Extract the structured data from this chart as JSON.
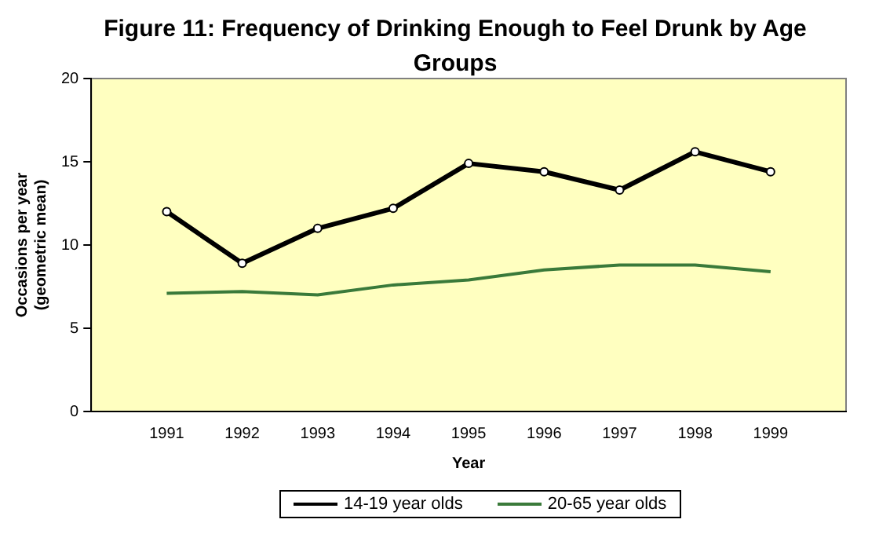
{
  "chart_data": {
    "type": "line",
    "title": "Figure 11: Frequency of Drinking Enough to Feel Drunk by Age Groups",
    "xlabel": "Year",
    "ylabel": "Occasions per year (geometric mean)",
    "categories": [
      null,
      "1991",
      "1992",
      "1993",
      "1994",
      "1995",
      "1996",
      "1997",
      "1998",
      "1999",
      null
    ],
    "series": [
      {
        "name": "14-19 year olds",
        "color": "#000000",
        "marker": "circle",
        "values": [
          null,
          12.0,
          8.9,
          11.0,
          12.2,
          14.9,
          14.4,
          13.3,
          15.6,
          14.4,
          null
        ]
      },
      {
        "name": "20-65 year olds",
        "color": "#3a7a3a",
        "marker": "none",
        "values": [
          null,
          7.1,
          7.2,
          7.0,
          7.6,
          7.9,
          8.5,
          8.8,
          8.8,
          8.4,
          null
        ]
      }
    ],
    "ylim": [
      0,
      20
    ],
    "yticks": [
      0,
      5,
      10,
      15,
      20
    ],
    "grid": false,
    "legend": "bottom"
  }
}
